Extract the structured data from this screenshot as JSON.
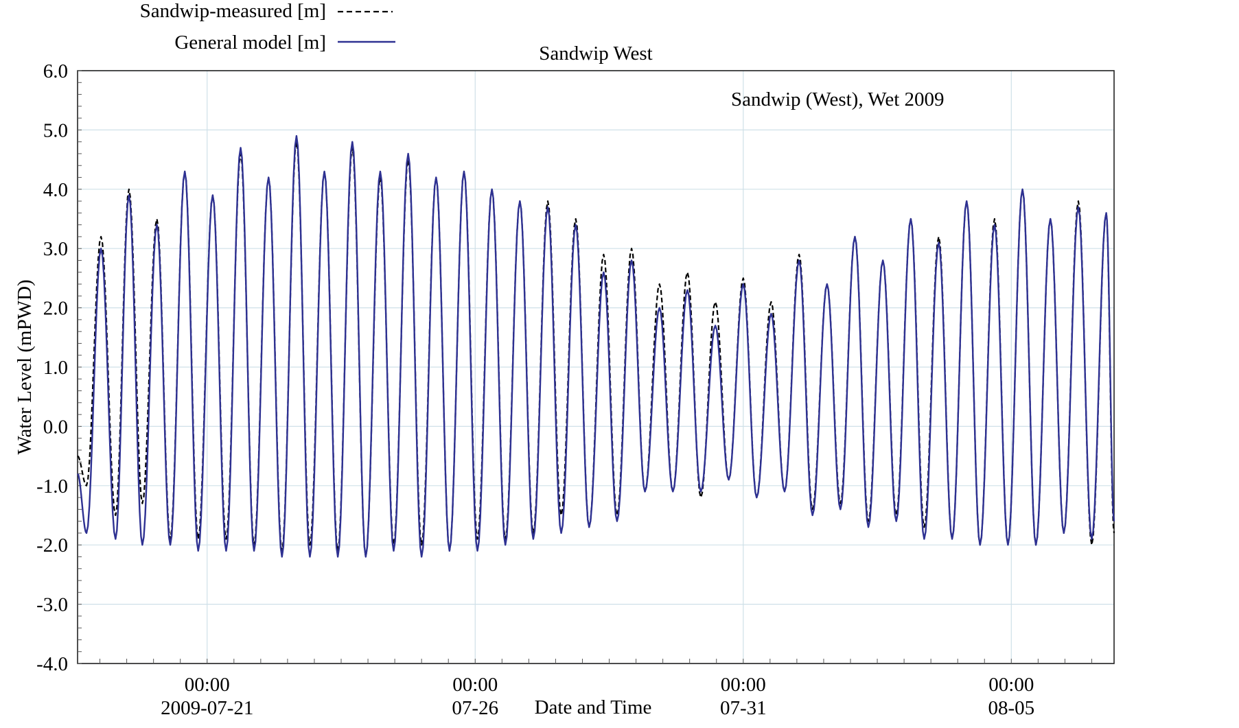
{
  "chart_data": {
    "type": "line",
    "title": "Sandwip West",
    "annotation": "Sandwip (West), Wet 2009",
    "xlabel": "Date and Time",
    "ylabel": "Water Level (mPWD)",
    "ylim": [
      -4.0,
      6.0
    ],
    "y_ticks": [
      "6.0",
      "5.0",
      "4.0",
      "3.0",
      "2.0",
      "1.0",
      "0.0",
      "-1.0",
      "-2.0",
      "-3.0",
      "-4.0"
    ],
    "xlim": [
      "2009-07-18 14:00",
      "2009-08-06 22:00"
    ],
    "x_ticks": [
      {
        "time": "00:00",
        "date": "2009-07-21"
      },
      {
        "time": "00:00",
        "date": "07-26"
      },
      {
        "time": "00:00",
        "date": "07-31"
      },
      {
        "time": "00:00",
        "date": "08-05"
      }
    ],
    "grid": true,
    "legend_position": "top-left",
    "series": [
      {
        "name": "Sandwip-measured [m]",
        "style": "dashed",
        "color": "#000000",
        "x": [
          "2009-07-18 14:00",
          "2009-07-18 18:00",
          "2009-07-19 00:30",
          "2009-07-19 07:00",
          "2009-07-19 13:00",
          "2009-07-19 19:00",
          "2009-07-20 01:30",
          "2009-07-20 07:30",
          "2009-07-20 14:00",
          "2009-07-20 20:00",
          "2009-07-21 02:30",
          "2009-07-21 08:30",
          "2009-07-21 15:00",
          "2009-07-21 21:00",
          "2009-07-22 03:30",
          "2009-07-22 09:30",
          "2009-07-22 16:00",
          "2009-07-22 22:00",
          "2009-07-23 04:30",
          "2009-07-23 10:30",
          "2009-07-23 17:00",
          "2009-07-23 23:00",
          "2009-07-24 05:30",
          "2009-07-24 11:30",
          "2009-07-24 18:00",
          "2009-07-25 00:00",
          "2009-07-25 06:30",
          "2009-07-25 12:30",
          "2009-07-25 19:00",
          "2009-07-26 01:00",
          "2009-07-26 07:30",
          "2009-07-26 13:30",
          "2009-07-26 20:00",
          "2009-07-27 02:00",
          "2009-07-27 08:30",
          "2009-07-27 14:30",
          "2009-07-27 21:00",
          "2009-07-28 03:00",
          "2009-07-28 09:30",
          "2009-07-28 15:30",
          "2009-07-28 22:00",
          "2009-07-29 04:00",
          "2009-07-29 10:30",
          "2009-07-29 16:30",
          "2009-07-29 23:00",
          "2009-07-30 05:00",
          "2009-07-30 11:30",
          "2009-07-30 17:30",
          "2009-07-31 00:00",
          "2009-07-31 06:00",
          "2009-07-31 12:30",
          "2009-07-31 18:30",
          "2009-08-01 01:00",
          "2009-08-01 07:00",
          "2009-08-01 13:30",
          "2009-08-01 19:30",
          "2009-08-02 02:00",
          "2009-08-02 08:00",
          "2009-08-02 14:30",
          "2009-08-02 20:30",
          "2009-08-03 03:00",
          "2009-08-03 09:00",
          "2009-08-03 15:30",
          "2009-08-03 21:30",
          "2009-08-04 04:00",
          "2009-08-04 10:00",
          "2009-08-04 16:30",
          "2009-08-04 22:30",
          "2009-08-05 05:00",
          "2009-08-05 11:00",
          "2009-08-05 17:30",
          "2009-08-05 23:30",
          "2009-08-06 06:00",
          "2009-08-06 12:00",
          "2009-08-06 18:30",
          "2009-08-06 22:00"
        ],
        "y": [
          -0.5,
          -1.0,
          3.2,
          -1.5,
          4.0,
          -1.3,
          3.5,
          -1.9,
          4.3,
          -1.9,
          3.9,
          -1.9,
          4.6,
          -2.0,
          4.2,
          -2.1,
          4.8,
          -2.0,
          4.3,
          -2.1,
          4.7,
          -2.2,
          4.2,
          -2.0,
          4.5,
          -2.0,
          4.2,
          -2.1,
          4.3,
          -1.9,
          4.0,
          -1.9,
          3.8,
          -1.8,
          3.8,
          -1.5,
          3.5,
          -1.7,
          2.9,
          -1.5,
          3.0,
          -1.1,
          2.4,
          -1.1,
          2.6,
          -1.2,
          2.1,
          -0.9,
          2.5,
          -1.2,
          2.1,
          -1.1,
          2.9,
          -1.4,
          2.4,
          -1.3,
          3.2,
          -1.6,
          2.8,
          -1.5,
          3.5,
          -1.7,
          3.2,
          -1.9,
          3.8,
          -2.0,
          3.5,
          -2.0,
          4.0,
          -2.0,
          3.5,
          -1.8,
          3.8,
          -2.0,
          3.6,
          -1.8
        ]
      },
      {
        "name": "General model [m]",
        "style": "solid",
        "color": "#2e3192",
        "x": [
          "2009-07-18 14:00",
          "2009-07-18 18:00",
          "2009-07-19 00:30",
          "2009-07-19 07:00",
          "2009-07-19 13:00",
          "2009-07-19 19:00",
          "2009-07-20 01:30",
          "2009-07-20 07:30",
          "2009-07-20 14:00",
          "2009-07-20 20:00",
          "2009-07-21 02:30",
          "2009-07-21 08:30",
          "2009-07-21 15:00",
          "2009-07-21 21:00",
          "2009-07-22 03:30",
          "2009-07-22 09:30",
          "2009-07-22 16:00",
          "2009-07-22 22:00",
          "2009-07-23 04:30",
          "2009-07-23 10:30",
          "2009-07-23 17:00",
          "2009-07-23 23:00",
          "2009-07-24 05:30",
          "2009-07-24 11:30",
          "2009-07-24 18:00",
          "2009-07-25 00:00",
          "2009-07-25 06:30",
          "2009-07-25 12:30",
          "2009-07-25 19:00",
          "2009-07-26 01:00",
          "2009-07-26 07:30",
          "2009-07-26 13:30",
          "2009-07-26 20:00",
          "2009-07-27 02:00",
          "2009-07-27 08:30",
          "2009-07-27 14:30",
          "2009-07-27 21:00",
          "2009-07-28 03:00",
          "2009-07-28 09:30",
          "2009-07-28 15:30",
          "2009-07-28 22:00",
          "2009-07-29 04:00",
          "2009-07-29 10:30",
          "2009-07-29 16:30",
          "2009-07-29 23:00",
          "2009-07-30 05:00",
          "2009-07-30 11:30",
          "2009-07-30 17:30",
          "2009-07-31 00:00",
          "2009-07-31 06:00",
          "2009-07-31 12:30",
          "2009-07-31 18:30",
          "2009-08-01 01:00",
          "2009-08-01 07:00",
          "2009-08-01 13:30",
          "2009-08-01 19:30",
          "2009-08-02 02:00",
          "2009-08-02 08:00",
          "2009-08-02 14:30",
          "2009-08-02 20:30",
          "2009-08-03 03:00",
          "2009-08-03 09:00",
          "2009-08-03 15:30",
          "2009-08-03 21:30",
          "2009-08-04 04:00",
          "2009-08-04 10:00",
          "2009-08-04 16:30",
          "2009-08-04 22:30",
          "2009-08-05 05:00",
          "2009-08-05 11:00",
          "2009-08-05 17:30",
          "2009-08-05 23:30",
          "2009-08-06 06:00",
          "2009-08-06 12:00",
          "2009-08-06 18:30",
          "2009-08-06 22:00"
        ],
        "y": [
          -0.8,
          -1.8,
          3.0,
          -1.9,
          3.9,
          -2.0,
          3.4,
          -2.0,
          4.3,
          -2.1,
          3.9,
          -2.1,
          4.7,
          -2.1,
          4.2,
          -2.2,
          4.9,
          -2.2,
          4.3,
          -2.2,
          4.8,
          -2.2,
          4.3,
          -2.1,
          4.6,
          -2.2,
          4.2,
          -2.1,
          4.3,
          -2.1,
          4.0,
          -2.0,
          3.8,
          -1.9,
          3.7,
          -1.8,
          3.4,
          -1.7,
          2.6,
          -1.6,
          2.8,
          -1.1,
          2.0,
          -1.1,
          2.3,
          -1.1,
          1.7,
          -0.9,
          2.4,
          -1.2,
          1.9,
          -1.1,
          2.8,
          -1.5,
          2.4,
          -1.4,
          3.2,
          -1.7,
          2.8,
          -1.6,
          3.5,
          -1.9,
          3.1,
          -1.9,
          3.8,
          -2.0,
          3.4,
          -2.0,
          4.0,
          -2.0,
          3.5,
          -1.8,
          3.7,
          -1.9,
          3.6,
          -1.6
        ]
      }
    ]
  }
}
